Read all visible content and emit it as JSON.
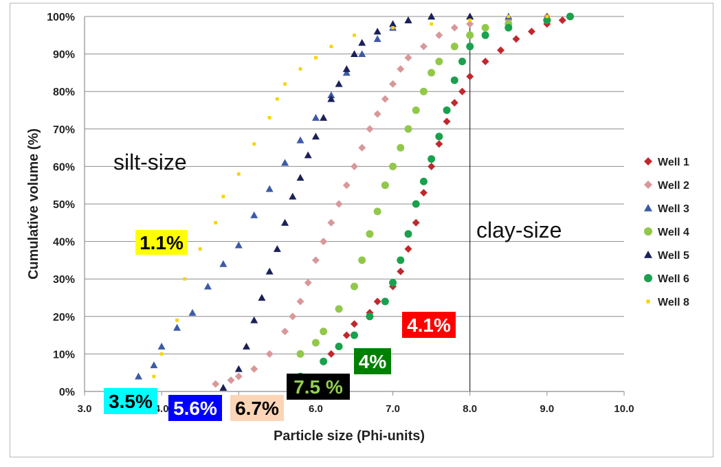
{
  "chart_data": {
    "type": "scatter",
    "title": "",
    "xlabel": "Particle size (Phi-units)",
    "ylabel": "Cumulative volume (%)",
    "xlim": [
      3.0,
      10.0
    ],
    "ylim": [
      0,
      100
    ],
    "x_ticks": [
      "3.0",
      "4.0",
      "5.0",
      "6.0",
      "7.0",
      "8.0",
      "9.0",
      "10.0"
    ],
    "y_ticks": [
      "0%",
      "10%",
      "20%",
      "30%",
      "40%",
      "50%",
      "60%",
      "70%",
      "80%",
      "90%",
      "100%"
    ],
    "grid": "horizontal",
    "legend_position": "right",
    "vertical_line_x": 8.0,
    "series": [
      {
        "name": "Well 1",
        "color": "#c0282d",
        "marker": "diamond",
        "x": [
          6.2,
          6.4,
          6.5,
          6.7,
          6.8,
          7.0,
          7.1,
          7.2,
          7.3,
          7.4,
          7.5,
          7.6,
          7.7,
          7.8,
          7.9,
          8.0,
          8.2,
          8.4,
          8.6,
          8.8,
          9.0,
          9.2,
          9.3
        ],
        "y": [
          10,
          15,
          18,
          21,
          24,
          28,
          32,
          38,
          45,
          53,
          60,
          66,
          72,
          77,
          80,
          84,
          88,
          91,
          94,
          96,
          98,
          99,
          100
        ]
      },
      {
        "name": "Well 2",
        "color": "#d8989a",
        "marker": "diamond",
        "x": [
          4.7,
          4.9,
          5.0,
          5.2,
          5.4,
          5.6,
          5.7,
          5.8,
          5.9,
          6.0,
          6.1,
          6.2,
          6.3,
          6.4,
          6.5,
          6.6,
          6.7,
          6.8,
          6.9,
          7.0,
          7.1,
          7.2,
          7.4,
          7.6,
          7.8,
          8.0,
          8.5,
          9.0,
          9.3
        ],
        "y": [
          2,
          3,
          4,
          6,
          10,
          16,
          20,
          24,
          29,
          35,
          40,
          45,
          50,
          55,
          60,
          65,
          70,
          74,
          78,
          82,
          86,
          89,
          92,
          95,
          97,
          98,
          99,
          100,
          100
        ]
      },
      {
        "name": "Well 3",
        "color": "#3c5aa6",
        "marker": "triangle",
        "x": [
          3.7,
          3.9,
          4.0,
          4.2,
          4.4,
          4.6,
          4.8,
          5.0,
          5.2,
          5.4,
          5.6,
          5.8,
          6.0,
          6.2,
          6.4,
          6.6,
          6.8,
          7.0,
          7.2,
          7.5,
          8.0,
          8.5,
          9.0
        ],
        "y": [
          4,
          7,
          12,
          17,
          21,
          28,
          34,
          39,
          47,
          54,
          61,
          67,
          73,
          79,
          85,
          90,
          94,
          97,
          99,
          100,
          100,
          100,
          100
        ]
      },
      {
        "name": "Well 4",
        "color": "#92c84a",
        "marker": "circle",
        "x": [
          5.8,
          6.0,
          6.1,
          6.3,
          6.5,
          6.6,
          6.7,
          6.8,
          6.9,
          7.0,
          7.1,
          7.2,
          7.3,
          7.4,
          7.5,
          7.6,
          7.8,
          8.0,
          8.2,
          8.5,
          9.0,
          9.3
        ],
        "y": [
          10,
          13,
          16,
          22,
          28,
          35,
          42,
          48,
          55,
          60,
          65,
          70,
          75,
          80,
          85,
          88,
          92,
          95,
          97,
          98,
          99,
          100
        ]
      },
      {
        "name": "Well 5",
        "color": "#1b2157",
        "marker": "triangle",
        "x": [
          4.8,
          5.0,
          5.1,
          5.2,
          5.3,
          5.4,
          5.5,
          5.6,
          5.7,
          5.8,
          5.9,
          6.0,
          6.1,
          6.2,
          6.3,
          6.4,
          6.5,
          6.6,
          6.8,
          7.0,
          7.2,
          7.5,
          8.0
        ],
        "y": [
          1,
          6,
          12,
          19,
          25,
          32,
          38,
          45,
          52,
          57,
          63,
          68,
          73,
          78,
          82,
          86,
          90,
          93,
          96,
          98,
          99,
          100,
          100
        ]
      },
      {
        "name": "Well 6",
        "color": "#1aa14e",
        "marker": "circle",
        "x": [
          5.8,
          6.1,
          6.3,
          6.5,
          6.7,
          6.9,
          7.0,
          7.1,
          7.2,
          7.3,
          7.4,
          7.5,
          7.6,
          7.7,
          7.8,
          7.9,
          8.0,
          8.2,
          8.5,
          9.0,
          9.3
        ],
        "y": [
          4,
          8,
          12,
          15,
          20,
          24,
          29,
          35,
          42,
          50,
          56,
          62,
          68,
          75,
          83,
          88,
          92,
          95,
          97,
          99,
          100
        ]
      },
      {
        "name": "Well 8",
        "color": "#f5d40c",
        "marker": "square",
        "x": [
          3.9,
          4.0,
          4.2,
          4.3,
          4.5,
          4.7,
          4.8,
          5.0,
          5.2,
          5.4,
          5.5,
          5.6,
          5.8,
          6.0,
          6.2,
          6.5,
          7.0,
          7.5,
          8.0,
          8.5,
          9.0
        ],
        "y": [
          4,
          10,
          19,
          30,
          38,
          45,
          52,
          58,
          66,
          73,
          78,
          82,
          86,
          89,
          92,
          95,
          97,
          98,
          99,
          100,
          100
        ]
      }
    ],
    "annotations": [
      {
        "text": "silt-size"
      },
      {
        "text": "clay-size"
      },
      {
        "text": "1.1%",
        "bg": "#ffff00",
        "fg": "#000000"
      },
      {
        "text": "3.5%",
        "bg": "#00ffff",
        "fg": "#000000"
      },
      {
        "text": "5.6%",
        "bg": "#0000ff",
        "fg": "#ffffff"
      },
      {
        "text": "6.7%",
        "bg": "#fbd5b5",
        "fg": "#000000"
      },
      {
        "text": "7.5 %",
        "bg": "#000000",
        "fg": "#92d050"
      },
      {
        "text": "4%",
        "bg": "#008000",
        "fg": "#ffffff"
      },
      {
        "text": "4.1%",
        "bg": "#ff0000",
        "fg": "#ffffff"
      }
    ]
  }
}
